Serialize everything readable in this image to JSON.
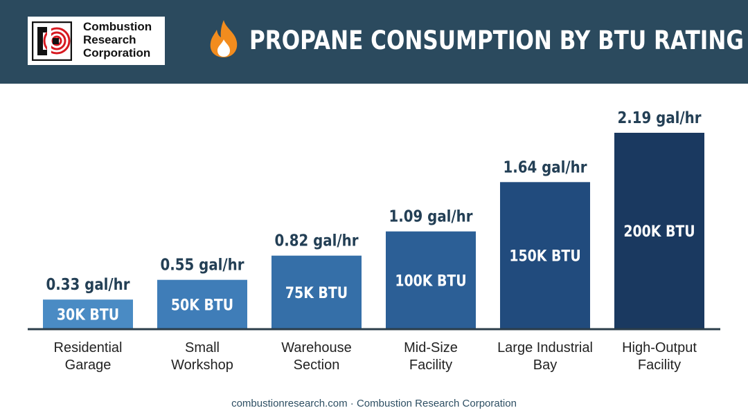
{
  "header": {
    "logo": {
      "line1": "Combustion",
      "line2": "Research",
      "line3": "Corporation"
    },
    "flame_icon": "flame-icon",
    "title": "PROPANE CONSUMPTION BY BTU RATING"
  },
  "colors": {
    "header_bg": "#2b4a5e",
    "title_text": "#ffffff",
    "flame": "#f28c1e",
    "logo_red": "#d71920",
    "bar_colors": [
      "#4a8bc4",
      "#3f7db8",
      "#356fa8",
      "#2c5f96",
      "#214b7d",
      "#1a3960"
    ],
    "value_label": "#233f55",
    "axis": "#2b3d4a"
  },
  "chart_data": {
    "type": "bar",
    "categories": [
      [
        "Residential",
        "Garage"
      ],
      [
        "Small",
        "Workshop"
      ],
      [
        "Warehouse",
        "Section"
      ],
      [
        "Mid-Size",
        "Facility"
      ],
      [
        "Large Industrial",
        "Bay"
      ],
      [
        "High-Output",
        "Facility"
      ]
    ],
    "values": [
      0.33,
      0.55,
      0.82,
      1.09,
      1.64,
      2.19
    ],
    "value_labels": [
      "0.33 gal/hr",
      "0.55 gal/hr",
      "0.82 gal/hr",
      "1.09 gal/hr",
      "1.64 gal/hr",
      "2.19 gal/hr"
    ],
    "bar_labels": [
      "30K BTU",
      "50K BTU",
      "75K BTU",
      "100K BTU",
      "150K BTU",
      "200K BTU"
    ],
    "title": "PROPANE CONSUMPTION BY BTU RATING",
    "xlabel": "",
    "ylabel": "",
    "ylim": [
      0,
      2.19
    ],
    "grid": false,
    "legend": "none"
  },
  "footer": {
    "text": "combustionresearch.com · Combustion Research Corporation"
  }
}
